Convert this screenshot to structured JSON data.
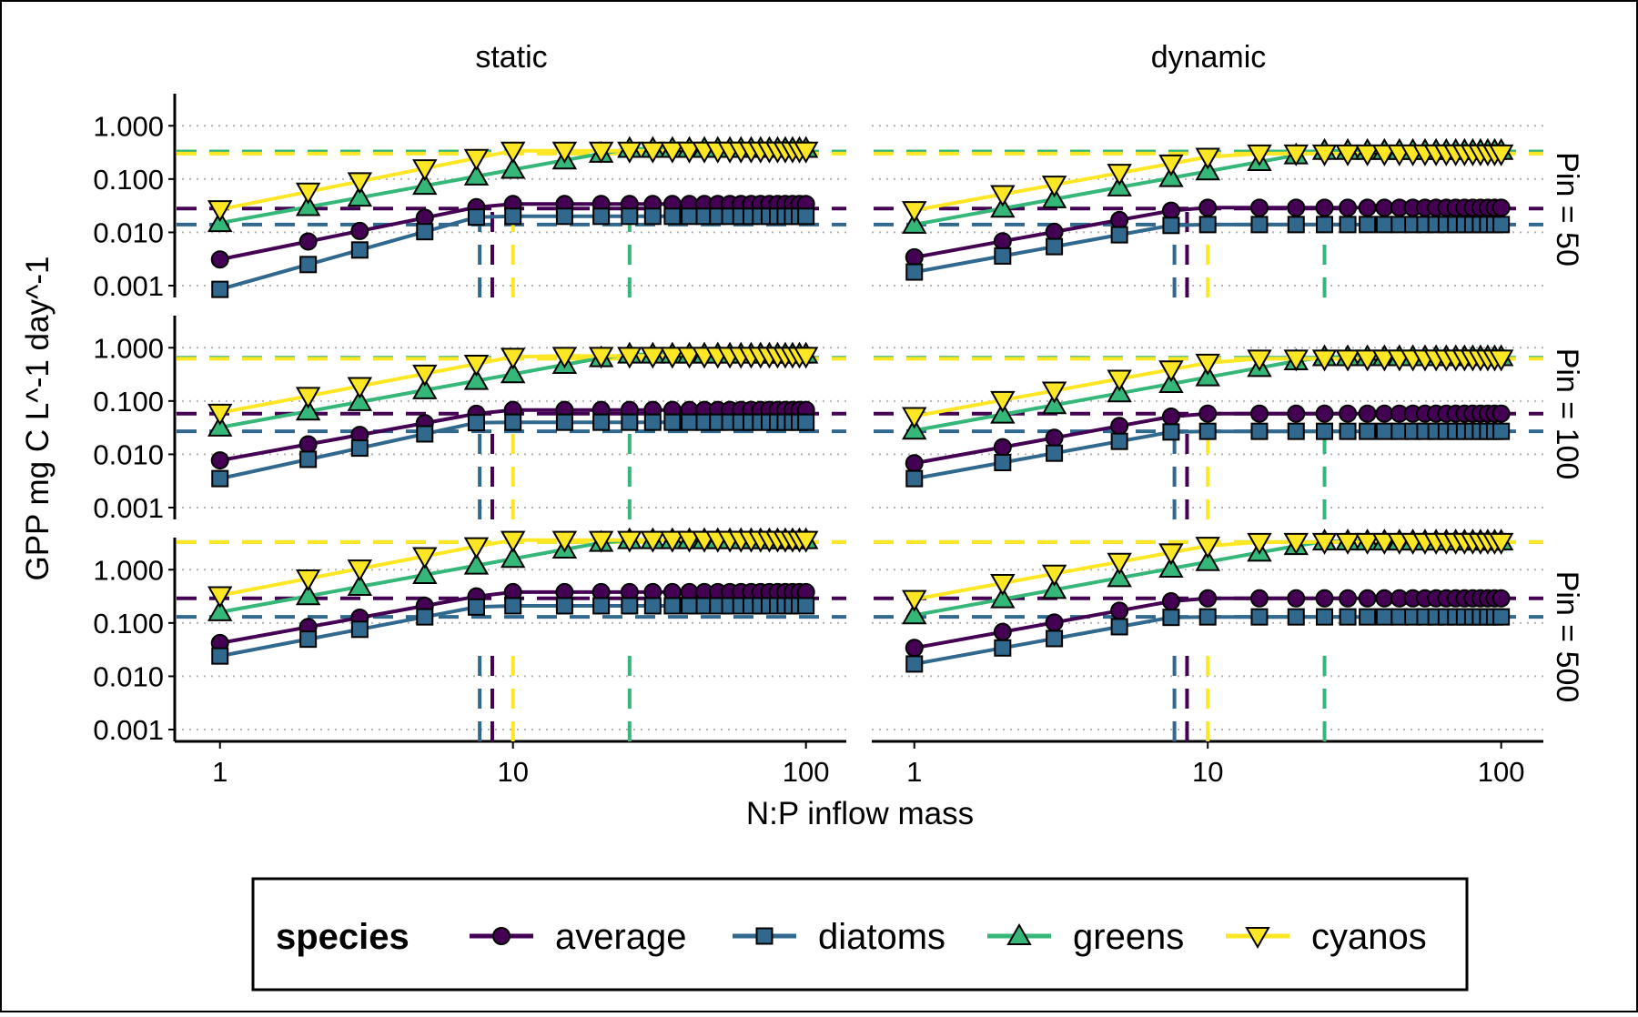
{
  "chart_data": {
    "type": "line",
    "xlabel": "N:P inflow mass",
    "ylabel": "GPP mg C L^-1 day^-1",
    "xscale": "log",
    "yscale": "log",
    "xlim": [
      0.9,
      110
    ],
    "x_ticks": [
      1,
      10,
      100
    ],
    "x_tick_labels": [
      "1",
      "10",
      "100"
    ],
    "y_ticks": [
      0.001,
      0.01,
      0.1,
      1
    ],
    "y_tick_labels": [
      "0.001",
      "0.010",
      "0.100",
      "1.000"
    ],
    "columns": [
      "static",
      "dynamic"
    ],
    "rows": [
      "Pin = 50",
      "Pin = 100",
      "Pin = 500"
    ],
    "x": [
      1,
      2,
      3,
      5,
      7.5,
      10,
      15,
      20,
      25,
      30,
      35,
      40,
      45,
      50,
      55,
      60,
      65,
      70,
      75,
      80,
      85,
      90,
      95,
      100
    ],
    "legend": {
      "title": "species",
      "position": "bottom",
      "items": [
        {
          "label": "average",
          "color": "#440154",
          "marker": "circle"
        },
        {
          "label": "diatoms",
          "color": "#31688E",
          "marker": "square"
        },
        {
          "label": "greens",
          "color": "#35B779",
          "marker": "triangle-up"
        },
        {
          "label": "cyanos",
          "color": "#FDE725",
          "marker": "triangle-down"
        }
      ]
    },
    "grid": "horizontal dotted at y ticks",
    "panels": [
      {
        "column": "static",
        "row": "Pin = 50",
        "ylim": [
          0.0006,
          4
        ],
        "vlines": {
          "average": 8.5,
          "diatoms": 7.7,
          "greens": 25,
          "cyanos": 10
        },
        "series": [
          {
            "name": "average",
            "break": 8.5,
            "a": 0.0031,
            "b": 1.12,
            "plateau": 0.034,
            "hline": 0.028
          },
          {
            "name": "diatoms",
            "break": 7.7,
            "a": 0.00085,
            "b": 1.55,
            "plateau": 0.02,
            "hline": 0.014
          },
          {
            "name": "greens",
            "break": 25,
            "a": 0.015,
            "b": 1.0,
            "plateau": 0.37,
            "hline": 0.33
          },
          {
            "name": "cyanos",
            "break": 10,
            "a": 0.027,
            "b": 1.1,
            "plateau": 0.34,
            "hline": 0.3
          }
        ]
      },
      {
        "column": "dynamic",
        "row": "Pin = 50",
        "ylim": [
          0.0006,
          4
        ],
        "vlines": {
          "average": 8.5,
          "diatoms": 7.7,
          "greens": 25,
          "cyanos": 10
        },
        "series": [
          {
            "name": "average",
            "break": 8.5,
            "a": 0.0034,
            "b": 1.0,
            "plateau": 0.029,
            "hline": 0.028
          },
          {
            "name": "diatoms",
            "break": 7.7,
            "a": 0.0018,
            "b": 1.0,
            "plateau": 0.014,
            "hline": 0.014
          },
          {
            "name": "greens",
            "break": 25,
            "a": 0.014,
            "b": 1.0,
            "plateau": 0.34,
            "hline": 0.33
          },
          {
            "name": "cyanos",
            "break": 10,
            "a": 0.026,
            "b": 1.0,
            "plateau": 0.3,
            "hline": 0.3
          }
        ]
      },
      {
        "column": "static",
        "row": "Pin = 100",
        "ylim": [
          0.0006,
          4
        ],
        "vlines": {
          "average": 8.5,
          "diatoms": 7.7,
          "greens": 25,
          "cyanos": 10
        },
        "series": [
          {
            "name": "average",
            "break": 8.5,
            "a": 0.0077,
            "b": 1.0,
            "plateau": 0.068,
            "hline": 0.058
          },
          {
            "name": "diatoms",
            "break": 7.7,
            "a": 0.0035,
            "b": 1.2,
            "plateau": 0.04,
            "hline": 0.027
          },
          {
            "name": "greens",
            "break": 25,
            "a": 0.032,
            "b": 1.0,
            "plateau": 0.75,
            "hline": 0.65
          },
          {
            "name": "cyanos",
            "break": 10,
            "a": 0.06,
            "b": 1.05,
            "plateau": 0.7,
            "hline": 0.62
          }
        ]
      },
      {
        "column": "dynamic",
        "row": "Pin = 100",
        "ylim": [
          0.0006,
          4
        ],
        "vlines": {
          "average": 8.5,
          "diatoms": 7.7,
          "greens": 25,
          "cyanos": 10
        },
        "series": [
          {
            "name": "average",
            "break": 8.5,
            "a": 0.0068,
            "b": 1.0,
            "plateau": 0.058,
            "hline": 0.058
          },
          {
            "name": "diatoms",
            "break": 7.7,
            "a": 0.0035,
            "b": 1.0,
            "plateau": 0.027,
            "hline": 0.027
          },
          {
            "name": "greens",
            "break": 25,
            "a": 0.028,
            "b": 1.0,
            "plateau": 0.67,
            "hline": 0.65
          },
          {
            "name": "cyanos",
            "break": 10,
            "a": 0.052,
            "b": 1.0,
            "plateau": 0.62,
            "hline": 0.62
          }
        ]
      },
      {
        "column": "static",
        "row": "Pin = 500",
        "ylim": [
          0.0006,
          4
        ],
        "vlines": {
          "average": 8.5,
          "diatoms": 7.7,
          "greens": 25,
          "cyanos": 10
        },
        "series": [
          {
            "name": "average",
            "break": 8.5,
            "a": 0.042,
            "b": 1.0,
            "plateau": 0.38,
            "hline": 0.29
          },
          {
            "name": "diatoms",
            "break": 7.7,
            "a": 0.024,
            "b": 1.05,
            "plateau": 0.21,
            "hline": 0.13
          },
          {
            "name": "greens",
            "break": 25,
            "a": 0.16,
            "b": 1.0,
            "plateau": 3.6,
            "hline": 3.3
          },
          {
            "name": "cyanos",
            "break": 10,
            "a": 0.33,
            "b": 1.05,
            "plateau": 3.6,
            "hline": 3.3
          }
        ]
      },
      {
        "column": "dynamic",
        "row": "Pin = 500",
        "ylim": [
          0.0006,
          4
        ],
        "vlines": {
          "average": 8.5,
          "diatoms": 7.7,
          "greens": 25,
          "cyanos": 10
        },
        "series": [
          {
            "name": "average",
            "break": 8.5,
            "a": 0.034,
            "b": 1.0,
            "plateau": 0.29,
            "hline": 0.29
          },
          {
            "name": "diatoms",
            "break": 7.7,
            "a": 0.017,
            "b": 1.0,
            "plateau": 0.13,
            "hline": 0.13
          },
          {
            "name": "greens",
            "break": 25,
            "a": 0.14,
            "b": 1.0,
            "plateau": 3.4,
            "hline": 3.3
          },
          {
            "name": "cyanos",
            "break": 10,
            "a": 0.28,
            "b": 1.0,
            "plateau": 3.3,
            "hline": 3.3
          }
        ]
      }
    ]
  }
}
